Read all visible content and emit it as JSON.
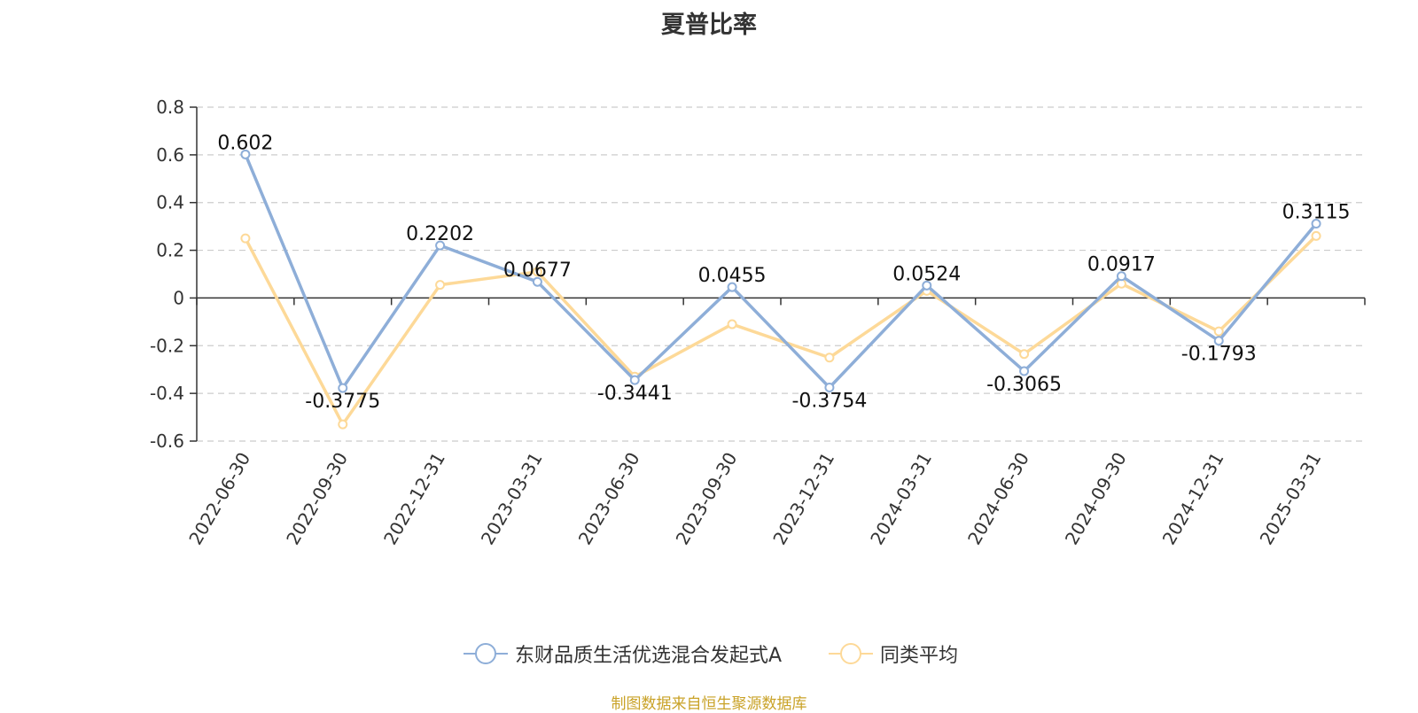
{
  "chart_data": {
    "type": "line",
    "title": "夏普比率",
    "categories": [
      "2022-06-30",
      "2022-09-30",
      "2022-12-31",
      "2023-03-31",
      "2023-06-30",
      "2023-09-30",
      "2023-12-31",
      "2024-03-31",
      "2024-06-30",
      "2024-09-30",
      "2024-12-31",
      "2025-03-31"
    ],
    "series": [
      {
        "name": "东财品质生活优选混合发起式A",
        "color": "#8eaed8",
        "values": [
          0.602,
          -0.3775,
          0.2202,
          0.0677,
          -0.3441,
          0.0455,
          -0.3754,
          0.0524,
          -0.3065,
          0.0917,
          -0.1793,
          0.3115
        ],
        "show_labels": true
      },
      {
        "name": "同类平均",
        "color": "#fdd998",
        "values": [
          0.25,
          -0.53,
          0.055,
          0.11,
          -0.33,
          -0.11,
          -0.25,
          0.03,
          -0.235,
          0.06,
          -0.14,
          0.26
        ],
        "show_labels": false
      }
    ],
    "ylim": [
      -0.6,
      0.8
    ],
    "yticks": [
      0.8,
      0.6,
      0.4,
      0.2,
      0,
      -0.2,
      -0.4,
      -0.6
    ],
    "ytick_labels": [
      "0.8",
      "0.6",
      "0.4",
      "0.2",
      "0",
      "-0.2",
      "-0.4",
      "-0.6"
    ],
    "grid": true,
    "legend_position": "bottom-center"
  },
  "source_note": "制图数据来自恒生聚源数据库"
}
